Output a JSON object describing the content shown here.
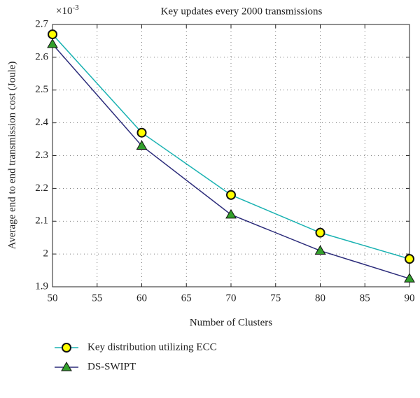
{
  "chart_data": {
    "type": "line",
    "title": "Key updates every 2000 transmissions",
    "multiplier": {
      "base": "×10",
      "exponent": "-3"
    },
    "xlabel": "Number of Clusters",
    "ylabel": "Average end to end transmission cost (Joule)",
    "x": [
      50,
      60,
      70,
      80,
      90
    ],
    "series": [
      {
        "name": "Key distribution utilizing ECC",
        "color": "#1ab2b2",
        "marker": "circle",
        "marker_color": "#ffff00",
        "values": [
          2.67,
          2.37,
          2.18,
          2.065,
          1.985
        ]
      },
      {
        "name": "DS-SWIPT",
        "color": "#2b2b7a",
        "marker": "triangle",
        "marker_color": "#33a02c",
        "values": [
          2.64,
          2.33,
          2.12,
          2.01,
          1.925
        ]
      }
    ],
    "xlim": [
      50,
      90
    ],
    "xticks": [
      50,
      55,
      60,
      65,
      70,
      75,
      80,
      85,
      90
    ],
    "ylim": [
      1.9,
      2.7
    ],
    "yticks": [
      1.9,
      2,
      2.1,
      2.2,
      2.3,
      2.4,
      2.5,
      2.6,
      2.7
    ],
    "grid": true,
    "legend": "bottom"
  }
}
